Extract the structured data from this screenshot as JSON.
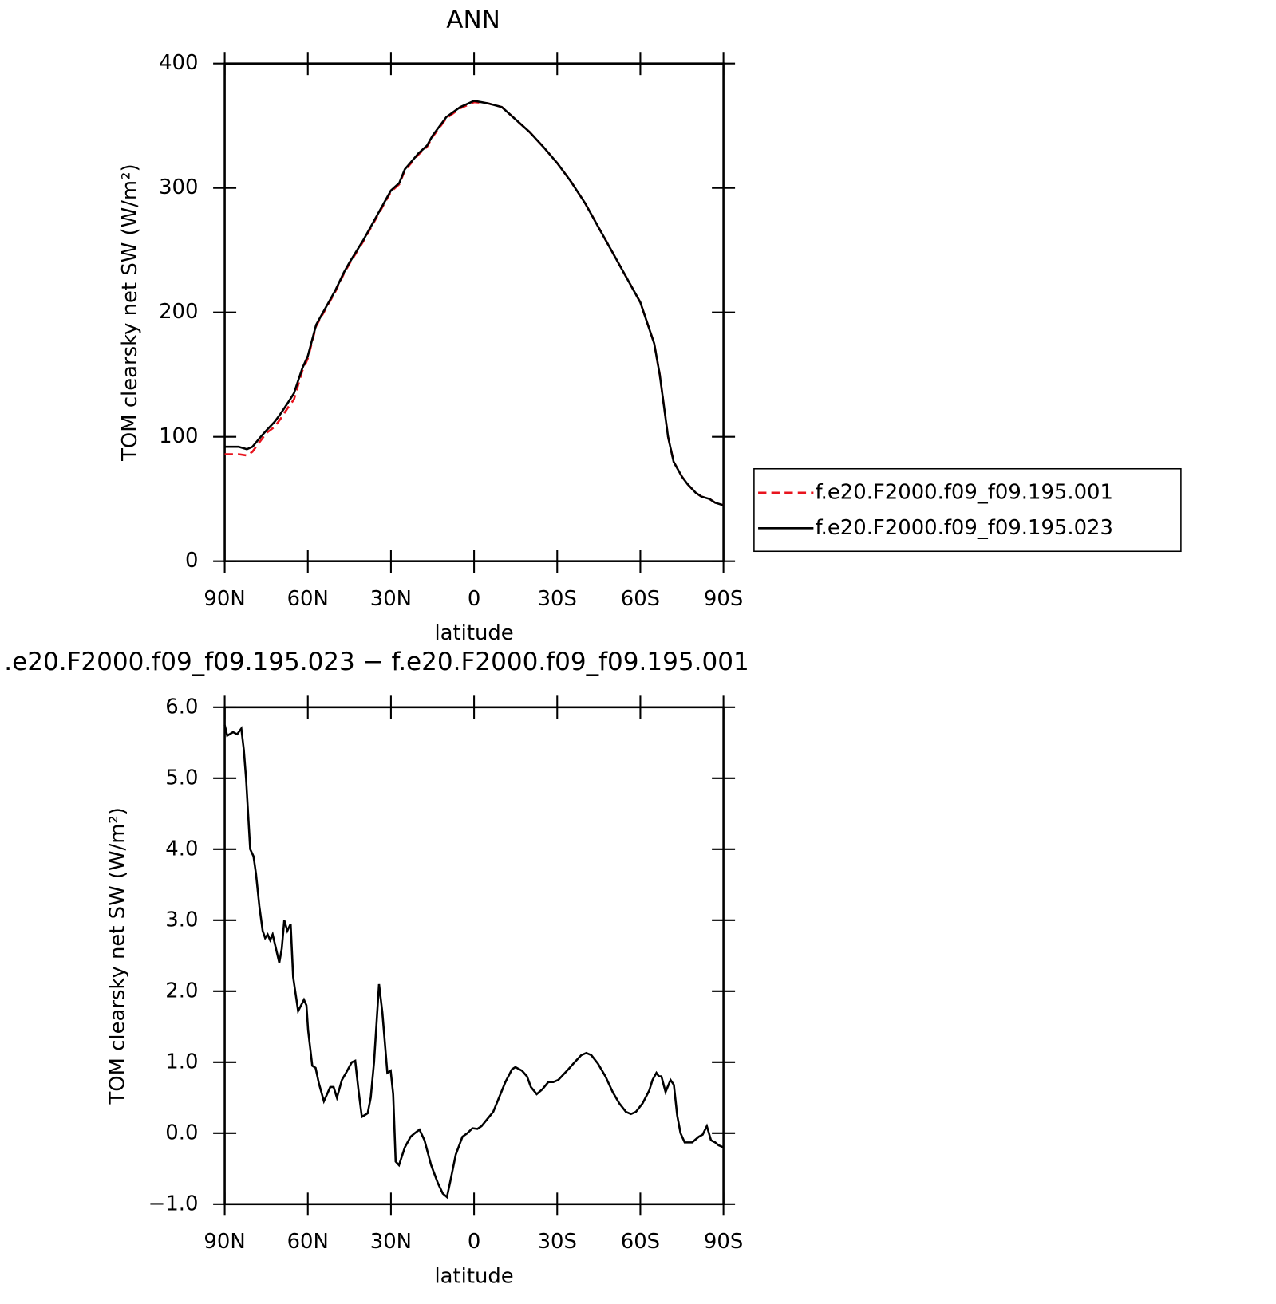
{
  "chart_data": [
    {
      "type": "line",
      "title": "ANN",
      "xlabel": "latitude",
      "ylabel": "TOM clearsky net SW (W/m²)",
      "xlim": [
        90,
        -90
      ],
      "xticks": [
        {
          "value": 90,
          "label": "90N"
        },
        {
          "value": 60,
          "label": "60N"
        },
        {
          "value": 30,
          "label": "30N"
        },
        0,
        {
          "value": -30,
          "label": "30S"
        },
        {
          "value": -60,
          "label": "60S"
        },
        {
          "value": -90,
          "label": "90S"
        }
      ],
      "ylim": [
        0,
        400
      ],
      "yticks": [
        0,
        100,
        200,
        300,
        400
      ],
      "legend": "right",
      "x": [
        90,
        85,
        82,
        80,
        77,
        75,
        72,
        70,
        67,
        65,
        62,
        60,
        57,
        55,
        52,
        50,
        47,
        45,
        40,
        35,
        32,
        30,
        27,
        25,
        20,
        17,
        15,
        10,
        5,
        0,
        -5,
        -10,
        -15,
        -20,
        -25,
        -30,
        -35,
        -40,
        -45,
        -50,
        -55,
        -60,
        -65,
        -67,
        -70,
        -72,
        -75,
        -77,
        -80,
        -82,
        -85,
        -87,
        -90
      ],
      "series": [
        {
          "name": "f.e20.F2000.f09_f09.195.001",
          "color": "#e8141e",
          "dash": true,
          "values": [
            86,
            86,
            85,
            88,
            97,
            103,
            108,
            114,
            124,
            130,
            153,
            163,
            189,
            197,
            209,
            217,
            231,
            239,
            257,
            277,
            289,
            297,
            303,
            314,
            327,
            333,
            341,
            356,
            364,
            369,
            368,
            365,
            355,
            345,
            333,
            320,
            305,
            288,
            268,
            248,
            228,
            208,
            175,
            150,
            100,
            80,
            68,
            62,
            55,
            52,
            50,
            47,
            45
          ]
        },
        {
          "name": "f.e20.F2000.f09_f09.195.023",
          "color": "#000000",
          "dash": false,
          "values": [
            92,
            92,
            90,
            92,
            100,
            105,
            112,
            118,
            128,
            135,
            155,
            165,
            190,
            198,
            210,
            218,
            232,
            240,
            258,
            278,
            290,
            298,
            304,
            315,
            328,
            334,
            342,
            357,
            365,
            370,
            368,
            365,
            355,
            345,
            333,
            320,
            305,
            288,
            268,
            248,
            228,
            208,
            175,
            150,
            100,
            80,
            68,
            62,
            55,
            52,
            50,
            47,
            45
          ]
        }
      ]
    },
    {
      "type": "line",
      "title": ".e20.F2000.f09_f09.195.023 − f.e20.F2000.f09_f09.195.001",
      "xlabel": "latitude",
      "ylabel": "TOM clearsky net SW (W/m²)",
      "xlim": [
        90,
        -90
      ],
      "xticks": [
        {
          "value": 90,
          "label": "90N"
        },
        {
          "value": 60,
          "label": "60N"
        },
        {
          "value": 30,
          "label": "30N"
        },
        0,
        {
          "value": -30,
          "label": "30S"
        },
        {
          "value": -60,
          "label": "60S"
        },
        {
          "value": -90,
          "label": "90S"
        }
      ],
      "ylim": [
        -1,
        6
      ],
      "yticks": [
        {
          "value": -1,
          "label": "−1.0"
        },
        {
          "value": 0,
          "label": "0.0"
        },
        {
          "value": 1,
          "label": "1.0"
        },
        {
          "value": 2,
          "label": "2.0"
        },
        {
          "value": 3,
          "label": "3.0"
        },
        {
          "value": 4,
          "label": "4.0"
        },
        {
          "value": 5,
          "label": "5.0"
        },
        {
          "value": 6,
          "label": "6.0"
        }
      ],
      "x": [
        90,
        89.1,
        87,
        85.5,
        84,
        83.1,
        82.3,
        80.8,
        79.6,
        78.7,
        77.5,
        76.3,
        75.4,
        74.5,
        73.6,
        72.7,
        71.5,
        70.3,
        69.4,
        68.5,
        67.4,
        66.2,
        65.3,
        63.5,
        61.4,
        60.5,
        59.9,
        58.4,
        57.2,
        56,
        54.2,
        51.9,
        50.7,
        49.5,
        47.7,
        46.2,
        44.1,
        42.9,
        41.7,
        40.5,
        38.4,
        37.3,
        36.1,
        34.3,
        33.1,
        31.3,
        30.1,
        29.2,
        28.3,
        27.1,
        25,
        22.9,
        21.4,
        19.7,
        17.9,
        15.5,
        13.1,
        11.3,
        9.8,
        8.7,
        6.6,
        4.2,
        2.4,
        0.6,
        -1.2,
        -2.7,
        -4.8,
        -6.9,
        -9,
        -11.3,
        -13.7,
        -14.9,
        -17.3,
        -19.1,
        -20.5,
        -22.6,
        -24.7,
        -26.8,
        -28.6,
        -30.4,
        -31.6,
        -34,
        -36.3,
        -38.7,
        -40.5,
        -42.3,
        -44.7,
        -47.4,
        -50,
        -52.4,
        -54.8,
        -56.6,
        -58.4,
        -60.8,
        -63.2,
        -64.4,
        -65.8,
        -66.7,
        -67.6,
        -69.1,
        -70.9,
        -72.1,
        -73.3,
        -74.5,
        -76,
        -78.7,
        -81.1,
        -82.5,
        -84,
        -85.5,
        -87,
        -88.2,
        -90
      ],
      "series": [
        {
          "color": "#000000",
          "dash": false,
          "values": [
            5.75,
            5.6,
            5.65,
            5.62,
            5.7,
            5.4,
            5.0,
            4.0,
            3.9,
            3.65,
            3.2,
            2.85,
            2.75,
            2.8,
            2.72,
            2.8,
            2.6,
            2.4,
            2.6,
            3.0,
            2.85,
            2.95,
            2.2,
            1.72,
            1.88,
            1.8,
            1.45,
            0.95,
            0.92,
            0.7,
            0.45,
            0.65,
            0.65,
            0.5,
            0.75,
            0.85,
            1.0,
            1.02,
            0.6,
            0.23,
            0.28,
            0.5,
            1.0,
            2.1,
            1.7,
            0.85,
            0.88,
            0.55,
            -0.4,
            -0.45,
            -0.2,
            -0.05,
            0.0,
            0.05,
            -0.1,
            -0.45,
            -0.7,
            -0.85,
            -0.9,
            -0.7,
            -0.3,
            -0.05,
            0.0,
            0.07,
            0.06,
            0.1,
            0.2,
            0.3,
            0.5,
            0.72,
            0.9,
            0.93,
            0.88,
            0.8,
            0.65,
            0.55,
            0.62,
            0.72,
            0.72,
            0.75,
            0.8,
            0.9,
            1.0,
            1.1,
            1.13,
            1.1,
            0.98,
            0.8,
            0.58,
            0.42,
            0.3,
            0.27,
            0.3,
            0.42,
            0.6,
            0.75,
            0.85,
            0.8,
            0.8,
            0.58,
            0.75,
            0.68,
            0.25,
            0.0,
            -0.13,
            -0.13,
            -0.05,
            -0.02,
            0.1,
            -0.1,
            -0.13,
            -0.17,
            -0.2
          ]
        }
      ]
    }
  ]
}
